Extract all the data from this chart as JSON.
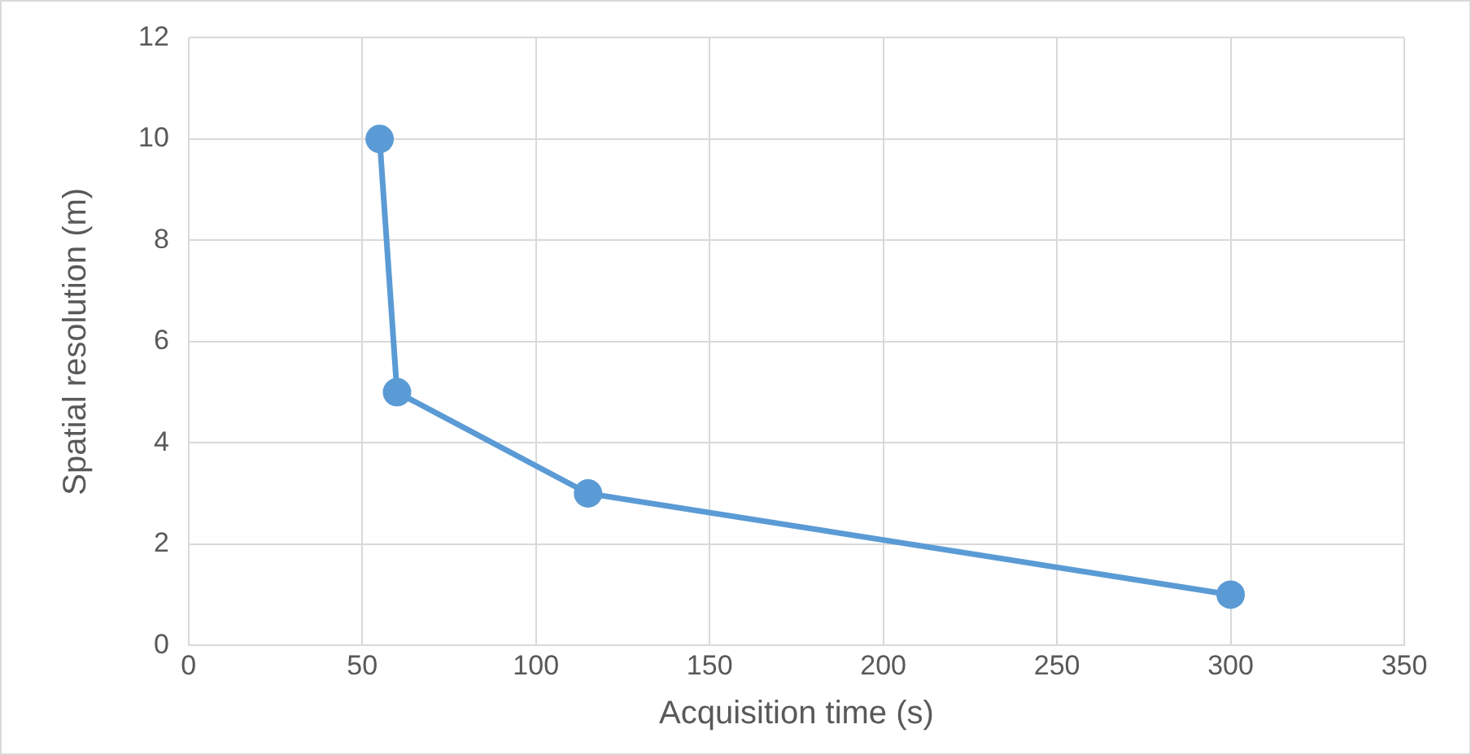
{
  "chart_data": {
    "type": "line",
    "xlabel": "Acquisition time (s)",
    "ylabel": "Spatial resolution (m)",
    "x": [
      55,
      60,
      115,
      300
    ],
    "series": [
      {
        "color": "#5b9bd5",
        "values": [
          10,
          5,
          3,
          1
        ]
      }
    ],
    "xlim": [
      0,
      350
    ],
    "xticks": [
      0,
      50,
      100,
      150,
      200,
      250,
      300,
      350
    ],
    "ylim": [
      0,
      12
    ],
    "yticks": [
      0,
      2,
      4,
      6,
      8,
      10,
      12
    ],
    "grid": true,
    "legend": false,
    "marker": "circle",
    "line_style": "solid"
  }
}
